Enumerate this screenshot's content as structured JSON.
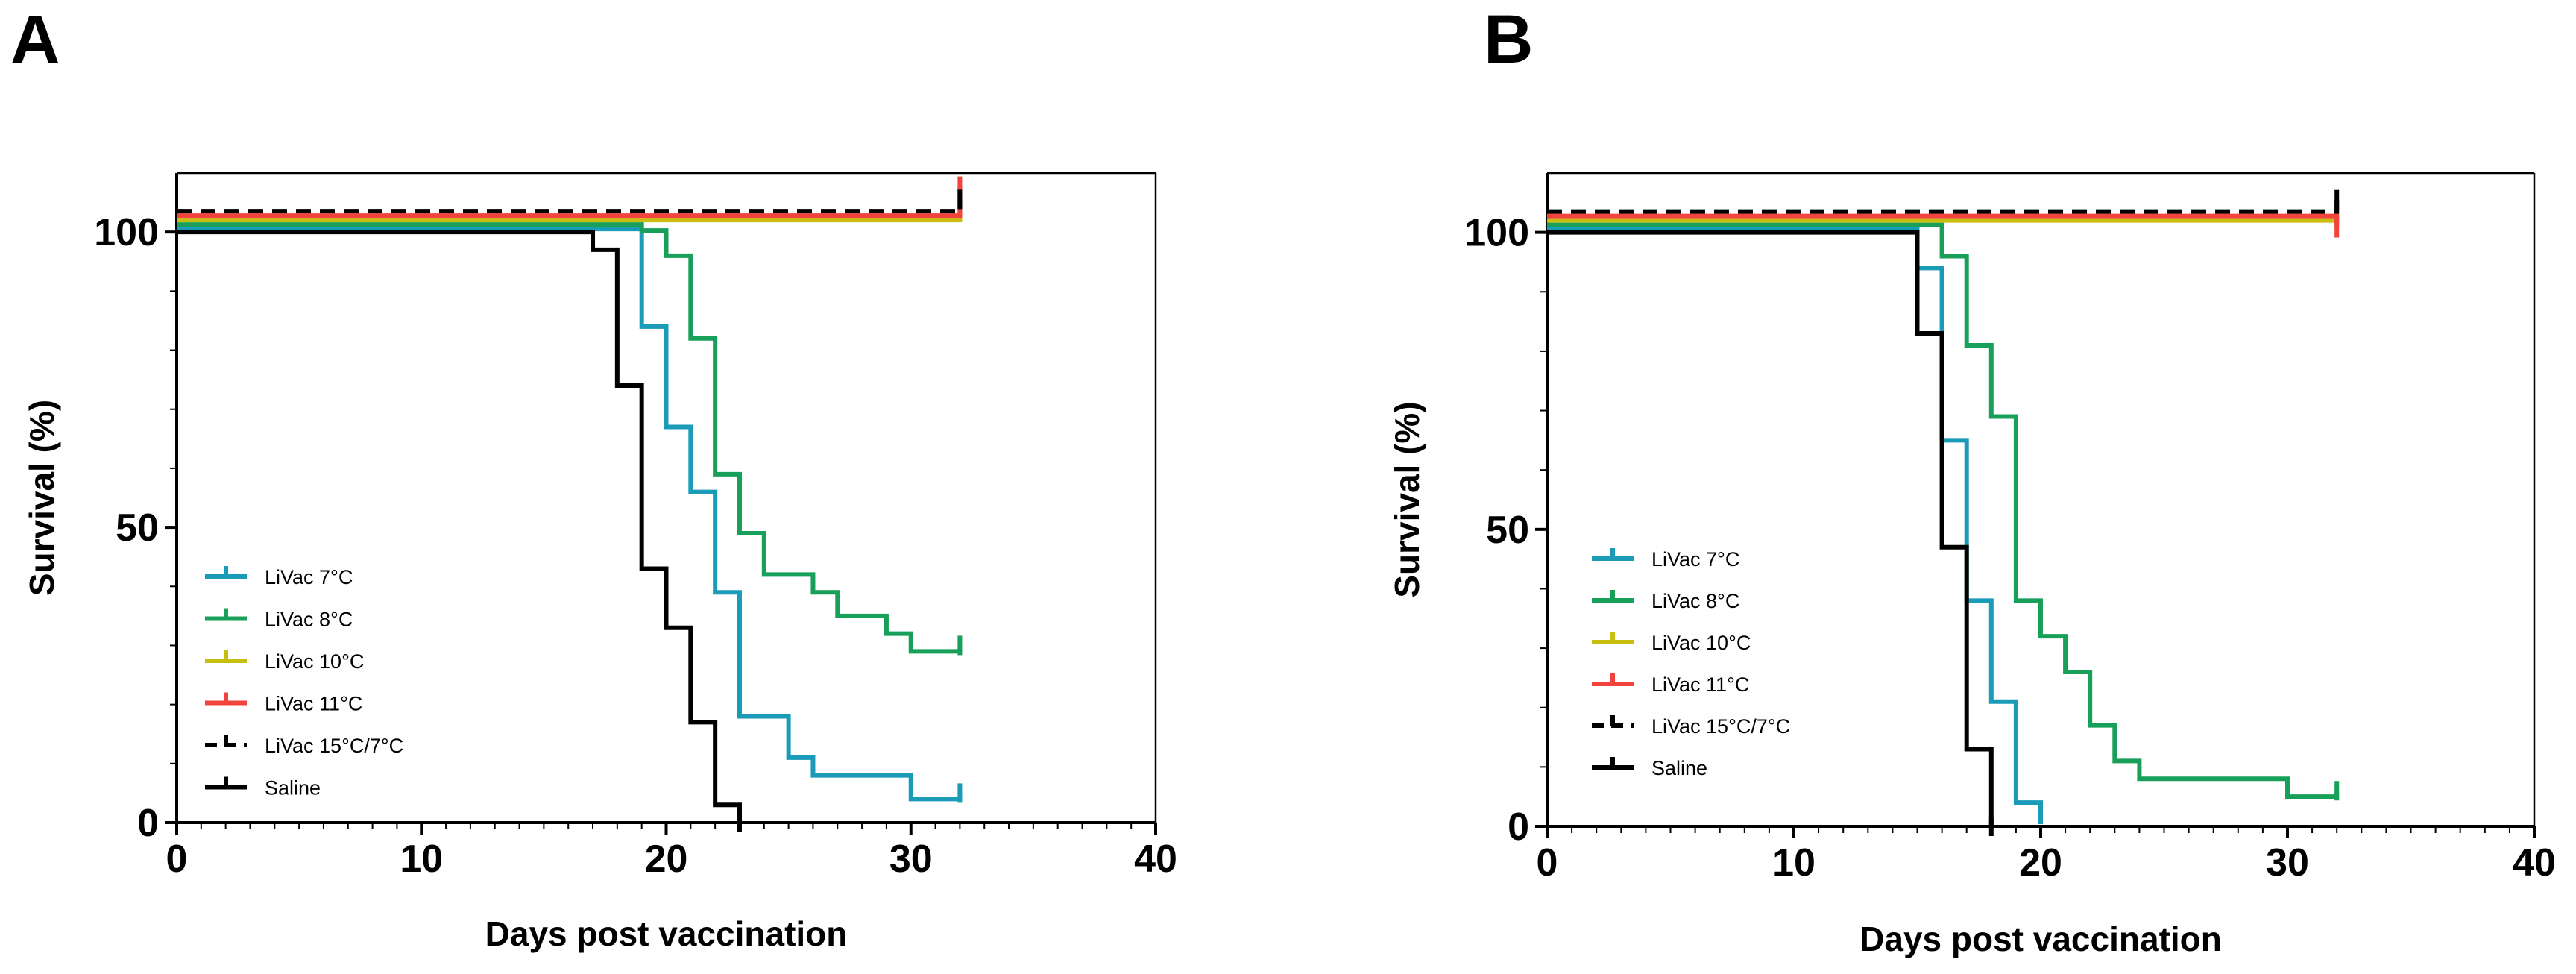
{
  "chart_data": [
    {
      "panel": "A",
      "type": "line",
      "subtype": "kaplan-meier step",
      "xlabel": "Days post vaccination",
      "ylabel": "Survival (%)",
      "xlim": [
        0,
        40
      ],
      "ylim": [
        0,
        110
      ],
      "xticks": [
        "0",
        "10",
        "20",
        "30",
        "40"
      ],
      "yticks": [
        "0",
        "50",
        "100"
      ],
      "legend_position": "middle-left",
      "series": [
        {
          "name": "LiVac 7°C",
          "color": "#1a9bb8",
          "dashed": false,
          "x": [
            0,
            18.5,
            19,
            20,
            21,
            22,
            23,
            25,
            26,
            30,
            32
          ],
          "y": [
            100,
            100,
            84,
            67,
            56,
            39,
            18,
            11,
            8,
            4,
            5
          ]
        },
        {
          "name": "LiVac 8°C",
          "color": "#18a05a",
          "dashed": false,
          "x": [
            0,
            19,
            20,
            21,
            22,
            23,
            24,
            26,
            27,
            29,
            30,
            32
          ],
          "y": [
            100,
            99,
            96,
            82,
            59,
            49,
            42,
            39,
            35,
            32,
            29,
            30
          ]
        },
        {
          "name": "LiVac 10°C",
          "color": "#c8be10",
          "dashed": false,
          "x": [
            0,
            32
          ],
          "y": [
            100,
            104
          ]
        },
        {
          "name": "LiVac 11°C",
          "color": "#f2433c",
          "dashed": false,
          "x": [
            0,
            32
          ],
          "y": [
            100,
            105
          ]
        },
        {
          "name": "LiVac 15°C/7°C",
          "color": "#000000",
          "dashed": true,
          "x": [
            0,
            22,
            32
          ],
          "y": [
            100,
            100,
            102
          ]
        },
        {
          "name": "Saline",
          "color": "#000000",
          "dashed": false,
          "x": [
            0,
            17,
            18,
            19,
            20,
            21,
            22,
            23
          ],
          "y": [
            100,
            97,
            74,
            43,
            33,
            17,
            3,
            0
          ]
        }
      ]
    },
    {
      "panel": "B",
      "type": "line",
      "subtype": "kaplan-meier step",
      "xlabel": "Days post vaccination",
      "ylabel": "Survival (%)",
      "xlim": [
        0,
        40
      ],
      "ylim": [
        0,
        110
      ],
      "xticks": [
        "0",
        "10",
        "20",
        "30",
        "40"
      ],
      "yticks": [
        "0",
        "50",
        "100"
      ],
      "legend_position": "middle-left",
      "series": [
        {
          "name": "LiVac 7°C",
          "color": "#1a9bb8",
          "dashed": false,
          "x": [
            0,
            15,
            16,
            17,
            18,
            19,
            20
          ],
          "y": [
            100,
            94,
            65,
            38,
            21,
            4,
            2
          ]
        },
        {
          "name": "LiVac 8°C",
          "color": "#18a05a",
          "dashed": false,
          "x": [
            0,
            16,
            17,
            18,
            19,
            20,
            21,
            22,
            23,
            24,
            30,
            32
          ],
          "y": [
            100,
            96,
            81,
            69,
            38,
            32,
            26,
            17,
            11,
            8,
            5,
            6
          ]
        },
        {
          "name": "LiVac 10°C",
          "color": "#c8be10",
          "dashed": false,
          "x": [
            0,
            26,
            32
          ],
          "y": [
            100,
            100,
            101
          ]
        },
        {
          "name": "LiVac 11°C",
          "color": "#f2433c",
          "dashed": false,
          "x": [
            0,
            29,
            32
          ],
          "y": [
            100,
            100,
            98
          ]
        },
        {
          "name": "LiVac 15°C/7°C",
          "color": "#000000",
          "dashed": true,
          "x": [
            0,
            27,
            32
          ],
          "y": [
            100,
            100,
            102
          ]
        },
        {
          "name": "Saline",
          "color": "#000000",
          "dashed": false,
          "x": [
            0,
            15,
            16,
            17,
            18
          ],
          "y": [
            100,
            83,
            47,
            13,
            0
          ]
        }
      ]
    }
  ]
}
